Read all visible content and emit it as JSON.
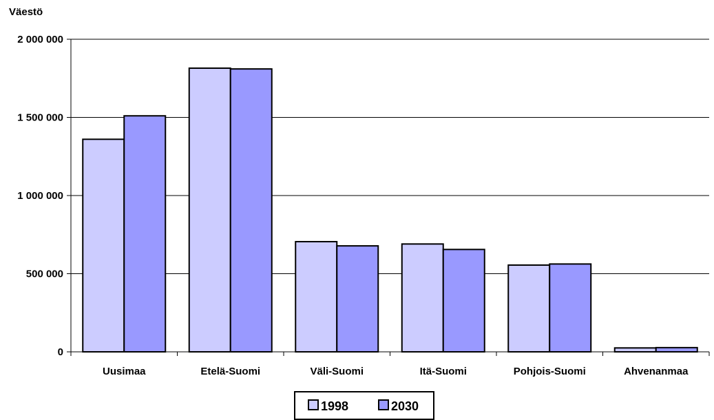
{
  "chart_data": {
    "type": "bar",
    "ylabel": "Väestö",
    "xlabel": "",
    "title": "",
    "categories": [
      "Uusimaa",
      "Etelä-Suomi",
      "Väli-Suomi",
      "Itä-Suomi",
      "Pohjois-Suomi",
      "Ahvenanmaa"
    ],
    "series": [
      {
        "name": "1998",
        "color": "#ccccff",
        "values": [
          1360000,
          1815000,
          705000,
          690000,
          555000,
          25000
        ]
      },
      {
        "name": "2030",
        "color": "#9999ff",
        "values": [
          1510000,
          1810000,
          678000,
          655000,
          562000,
          27000
        ]
      }
    ],
    "ylim": [
      0,
      2000000
    ],
    "yticks": [
      0,
      500000,
      1000000,
      1500000,
      2000000
    ],
    "ytick_labels": [
      "0",
      "500 000",
      "1 000 000",
      "1 500 000",
      "2 000 000"
    ],
    "grid": true,
    "legend_position": "bottom-center"
  }
}
